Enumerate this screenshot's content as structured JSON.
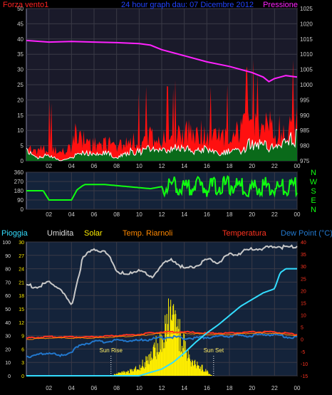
{
  "header": {
    "left_label": "Forza vento1",
    "center_title": "24 hour graph dau: 07 Dicembre 2012",
    "right_label": "Pressione"
  },
  "panel2": {
    "compass_labels": [
      "N",
      "W",
      "S",
      "E",
      "N"
    ]
  },
  "panel3": {
    "labels": {
      "rain": "Pioggia",
      "humidity": "Umidita",
      "solar": "Solar",
      "heat_index": "Temp. Riarnoli",
      "temperature": "Temperatura",
      "dew_point": "Dew Point (°C)"
    },
    "annotations": {
      "sun_rise": "Sun Rise",
      "sun_set": "Sun Set"
    }
  },
  "colors": {
    "background": "#000000",
    "panel_top": "#1a1a2a",
    "panel_bottom": "#14233a",
    "grid": "#3a3a46",
    "wind_gust": "#ff1010",
    "wind_avg": "#ffffff",
    "wind_fill": "#0a6a1a",
    "pressure": "#ff22ff",
    "wind_dir": "#10ff10",
    "humidity": "#c8c8c8",
    "temperature": "#ff3320",
    "dew_point": "#2277cc",
    "heat_index": "#ff8800",
    "solar": "#ffee00",
    "rain": "#33ddff"
  },
  "chart_data": [
    {
      "type": "area",
      "name": "wind_and_pressure",
      "x_ticks": [
        "02",
        "04",
        "06",
        "08",
        "10",
        "12",
        "14",
        "16",
        "18",
        "20",
        "22",
        "00"
      ],
      "y_left_ticks": [
        0,
        5,
        10,
        15,
        20,
        25,
        30,
        35,
        40,
        45,
        50
      ],
      "y_right_ticks": [
        975,
        980,
        985,
        990,
        995,
        1000,
        1005,
        1010,
        1015,
        1020,
        1025
      ],
      "ylim_left": [
        0,
        50
      ],
      "ylim_right": [
        975,
        1025
      ],
      "xlim_hours": [
        0,
        24
      ],
      "series": [
        {
          "name": "Forza vento1",
          "axis": "left",
          "x_hours": [
            0,
            1,
            2,
            3,
            4,
            4.5,
            5,
            6,
            7,
            8,
            9,
            10,
            11,
            12,
            13,
            13.5,
            14,
            14.5,
            15,
            15.5,
            16,
            17,
            18,
            19,
            19.5,
            20,
            20.5,
            21,
            21.5,
            22,
            22.5,
            23,
            23.5,
            24
          ],
          "values": [
            5,
            4,
            5,
            3,
            5,
            12,
            8,
            6,
            7,
            5,
            8,
            7,
            9,
            8,
            8,
            13,
            9,
            14,
            9,
            11,
            8,
            10,
            9,
            11,
            13,
            17,
            11,
            13,
            15,
            10,
            12,
            10,
            14,
            15
          ]
        },
        {
          "name": "wind_average",
          "axis": "left",
          "x_hours": [
            0,
            1,
            2,
            3,
            4,
            5,
            6,
            7,
            8,
            9,
            10,
            11,
            12,
            13,
            14,
            15,
            16,
            17,
            18,
            19,
            20,
            21,
            22,
            23,
            24
          ],
          "values": [
            3,
            1,
            2,
            0,
            1,
            3,
            2,
            3,
            1,
            3,
            3,
            4,
            3,
            4,
            4,
            3,
            4,
            2,
            3,
            3,
            6,
            5,
            4,
            6,
            8
          ]
        },
        {
          "name": "Pressione",
          "axis": "right",
          "x_hours": [
            0,
            2,
            4,
            6,
            8,
            10,
            11,
            12,
            14,
            16,
            18,
            20,
            21,
            21.5,
            22,
            22.5,
            23,
            24
          ],
          "values": [
            1014.5,
            1014,
            1014.2,
            1014,
            1013.8,
            1013.5,
            1013,
            1011.5,
            1009.5,
            1007.5,
            1006,
            1004,
            1002.5,
            1001,
            1002,
            1002.5,
            1003,
            1002.5
          ]
        }
      ]
    },
    {
      "type": "line",
      "name": "wind_direction",
      "x_ticks": [
        "02",
        "04",
        "06",
        "08",
        "10",
        "12",
        "14",
        "16",
        "18",
        "20",
        "22",
        "00"
      ],
      "y_ticks": [
        0,
        90,
        180,
        270,
        360
      ],
      "ylim": [
        0,
        360
      ],
      "series": [
        {
          "name": "direction",
          "x_hours": [
            0,
            1.5,
            2,
            3,
            4,
            4.5,
            5,
            5.2,
            6,
            7,
            8,
            9,
            10,
            11,
            12,
            13,
            14,
            15,
            16,
            17,
            18,
            19,
            20,
            21,
            22,
            23,
            24
          ],
          "values": [
            180,
            180,
            90,
            90,
            90,
            190,
            230,
            240,
            240,
            240,
            230,
            220,
            210,
            200,
            220,
            230,
            200,
            240,
            210,
            230,
            230,
            220,
            200,
            230,
            200,
            210,
            230
          ]
        }
      ]
    },
    {
      "type": "line",
      "name": "temperature_humidity_solar_rain",
      "x_ticks": [
        "02",
        "04",
        "06",
        "08",
        "10",
        "12",
        "14",
        "16",
        "18",
        "20",
        "22",
        "00"
      ],
      "y_left_ticks": [
        0,
        10,
        20,
        30,
        40,
        50,
        60,
        70,
        80,
        90,
        100
      ],
      "y_left2_ticks": [
        0,
        3,
        6,
        9,
        12,
        15,
        18,
        21,
        24,
        27,
        30
      ],
      "y_right_ticks": [
        -15,
        -10,
        -5,
        0,
        5,
        10,
        15,
        20,
        25,
        30,
        35,
        40
      ],
      "ylim_left": [
        0,
        100
      ],
      "ylim_right": [
        -15,
        40
      ],
      "series": [
        {
          "name": "Umidita",
          "axis": "left",
          "x_hours": [
            0,
            1,
            2,
            3,
            3.5,
            4,
            4.5,
            5,
            6,
            7,
            7.5,
            8,
            9,
            10,
            11,
            12,
            13,
            14,
            15,
            16,
            17,
            18,
            19,
            20,
            21,
            22,
            23,
            24
          ],
          "values": [
            68,
            66,
            70,
            65,
            58,
            52,
            70,
            88,
            95,
            92,
            88,
            78,
            75,
            80,
            73,
            83,
            87,
            80,
            82,
            87,
            85,
            90,
            92,
            95,
            95,
            97,
            96,
            97
          ]
        },
        {
          "name": "Temperatura",
          "axis": "right",
          "x_hours": [
            0,
            2,
            4,
            6,
            8,
            10,
            12,
            14,
            16,
            18,
            20,
            22,
            24
          ],
          "values": [
            0.5,
            1,
            1,
            1,
            1.5,
            2,
            3,
            3,
            2.5,
            2.5,
            3,
            3,
            2
          ]
        },
        {
          "name": "Temp. Riarnoli",
          "axis": "right",
          "x_hours": [
            0,
            2,
            4,
            6,
            8,
            10,
            12,
            14,
            16,
            18,
            20,
            22,
            24
          ],
          "values": [
            0,
            0.5,
            0.5,
            0.5,
            1,
            1.5,
            2.5,
            2.5,
            2,
            2,
            2.5,
            2.5,
            1.5
          ]
        },
        {
          "name": "Dew Point (°C)",
          "axis": "right",
          "x_hours": [
            0,
            1,
            2,
            3,
            4,
            5,
            6,
            7,
            8,
            9,
            10,
            11,
            12,
            13,
            14,
            15,
            16,
            17,
            18,
            19,
            20,
            21,
            22,
            23,
            24
          ],
          "values": [
            -7,
            -6.5,
            -5.5,
            -7,
            -5,
            -2,
            -1,
            -1,
            -0.5,
            -0.5,
            -0.5,
            0,
            0.5,
            1,
            0.5,
            0.5,
            1,
            1,
            1.5,
            1.5,
            1.5,
            2,
            2,
            1,
            1
          ]
        },
        {
          "name": "Pioggia",
          "axis": "left",
          "x_hours": [
            0,
            2,
            4,
            6,
            8,
            10,
            12,
            13,
            14,
            15,
            16,
            17,
            18,
            19,
            20,
            21,
            22,
            22.5,
            23,
            24
          ],
          "values": [
            0,
            0,
            0,
            0,
            0,
            0,
            5,
            10,
            17,
            25,
            32,
            38,
            45,
            52,
            57,
            62,
            65,
            77,
            80,
            80
          ]
        },
        {
          "name": "Solar",
          "axis": "left2",
          "x_hours": [
            7.5,
            8,
            9,
            10,
            11,
            11.5,
            12,
            12.5,
            13,
            13.5,
            14,
            14.5,
            15,
            16,
            16.5
          ],
          "values": [
            0,
            0.5,
            1,
            2,
            4,
            7,
            9,
            14,
            12,
            10,
            7,
            4,
            3,
            1,
            0
          ]
        }
      ],
      "markers": [
        {
          "label": "Sun Rise",
          "x_hours": 7.5
        },
        {
          "label": "Sun Set",
          "x_hours": 16.6
        }
      ]
    }
  ]
}
